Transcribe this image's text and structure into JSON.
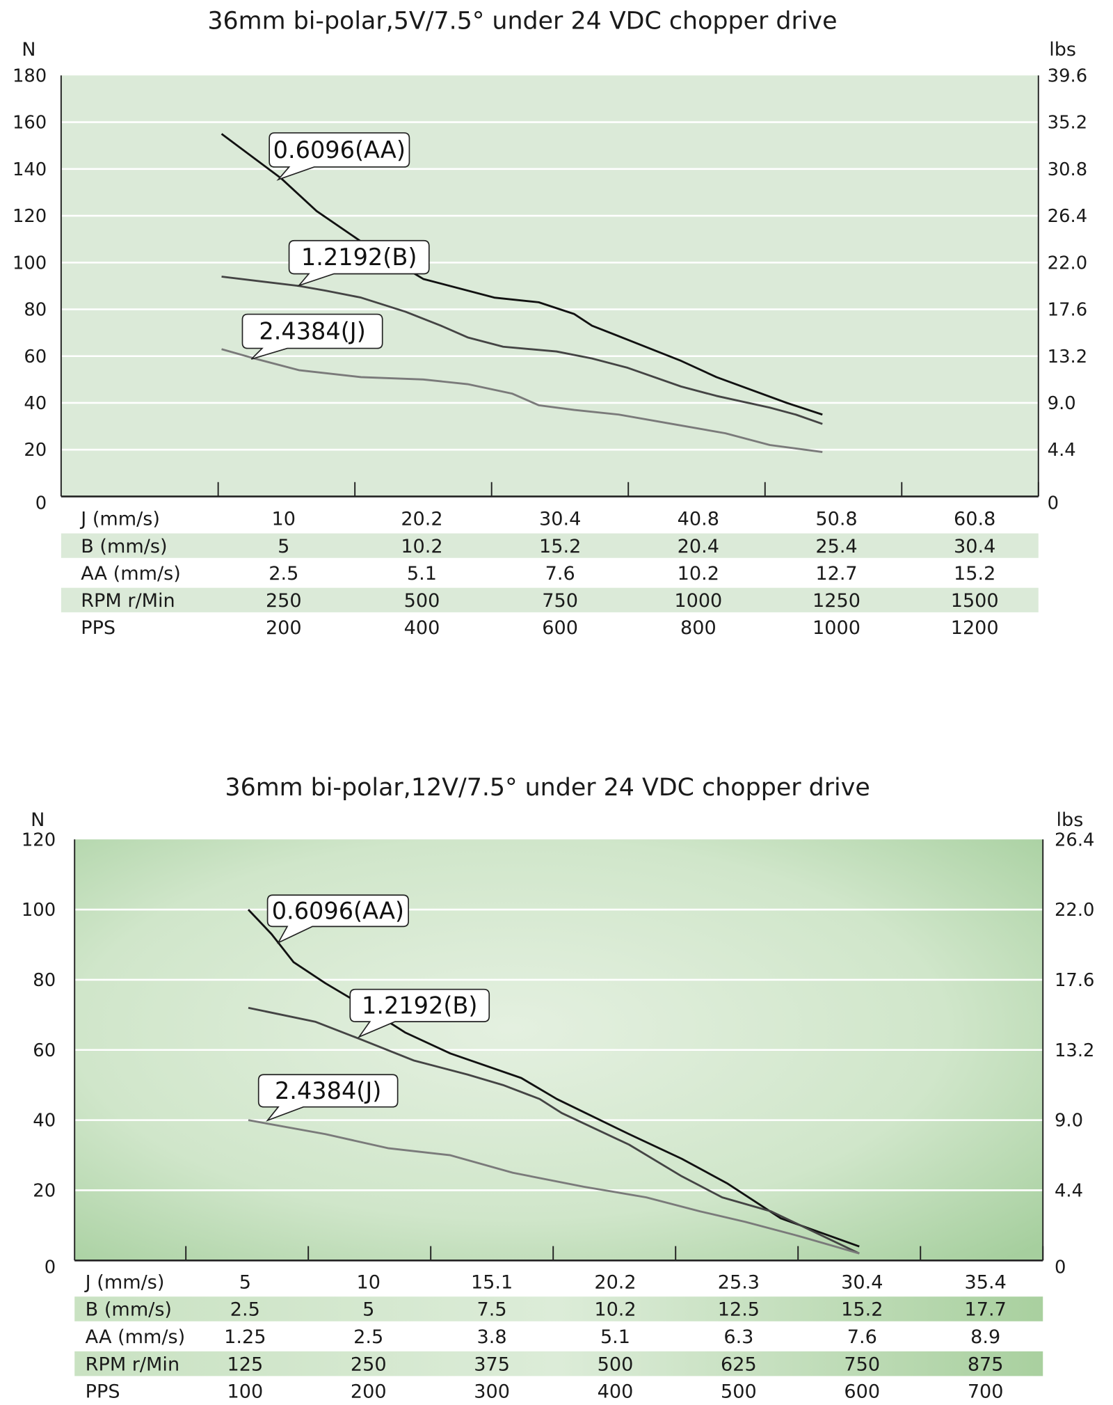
{
  "chart_data": [
    {
      "type": "line",
      "title": "36mm bi-polar,5V/7.5° under 24 VDC chopper drive",
      "y_left_label": "N",
      "y_right_label": "lbs",
      "ylim": [
        0,
        180
      ],
      "y_ticks_left": [
        "0",
        "20",
        "40",
        "60",
        "80",
        "100",
        "120",
        "140",
        "160",
        "180"
      ],
      "y_ticks_right": [
        "0",
        "4.4",
        "9.0",
        "13.2",
        "17.6",
        "22.0",
        "26.4",
        "30.8",
        "35.2",
        "39.6"
      ],
      "grid": true,
      "plot_color": "#dbead8",
      "x_unit": "PPS",
      "series": [
        {
          "name": "0.6096(AA)",
          "color": "#111111",
          "points": [
            [
              105,
              155
            ],
            [
              192,
              136
            ],
            [
              244,
              122
            ],
            [
              309,
              109
            ],
            [
              400,
              93
            ],
            [
              504,
              85
            ],
            [
              569,
              83
            ],
            [
              621,
              78
            ],
            [
              647,
              73
            ],
            [
              699,
              67
            ],
            [
              777,
              58
            ],
            [
              829,
              51
            ],
            [
              932,
              40
            ],
            [
              984,
              35
            ]
          ]
        },
        {
          "name": "1.2192(B)",
          "color": "#444444",
          "points": [
            [
              105,
              94
            ],
            [
              218,
              90
            ],
            [
              257,
              88
            ],
            [
              309,
              85
            ],
            [
              374,
              79
            ],
            [
              426,
              73
            ],
            [
              465,
              68
            ],
            [
              517,
              64
            ],
            [
              595,
              62
            ],
            [
              647,
              59
            ],
            [
              699,
              55
            ],
            [
              777,
              47
            ],
            [
              829,
              43
            ],
            [
              907,
              38
            ],
            [
              945,
              35
            ],
            [
              984,
              31
            ]
          ]
        },
        {
          "name": "2.4384(J)",
          "color": "#7a7a7a",
          "points": [
            [
              105,
              63
            ],
            [
              153,
              59
            ],
            [
              218,
              54
            ],
            [
              309,
              51
            ],
            [
              400,
              50
            ],
            [
              465,
              48
            ],
            [
              530,
              44
            ],
            [
              569,
              39
            ],
            [
              621,
              37
            ],
            [
              686,
              35
            ],
            [
              764,
              31
            ],
            [
              842,
              27
            ],
            [
              907,
              22
            ],
            [
              984,
              19
            ]
          ]
        }
      ],
      "table": {
        "rows": [
          {
            "label": "J (mm/s)",
            "values": [
              "10",
              "20.2",
              "30.4",
              "40.8",
              "50.8",
              "60.8"
            ]
          },
          {
            "label": "B (mm/s)",
            "values": [
              "5",
              "10.2",
              "15.2",
              "20.4",
              "25.4",
              "30.4"
            ]
          },
          {
            "label": "AA (mm/s)",
            "values": [
              "2.5",
              "5.1",
              "7.6",
              "10.2",
              "12.7",
              "15.2"
            ]
          },
          {
            "label": "RPM r/Min",
            "values": [
              "250",
              "500",
              "750",
              "1000",
              "1250",
              "1500"
            ]
          },
          {
            "label": "PPS",
            "values": [
              "200",
              "400",
              "600",
              "800",
              "1000",
              "1200"
            ]
          }
        ]
      }
    },
    {
      "type": "line",
      "title": "36mm bi-polar,12V/7.5° under 24 VDC chopper drive",
      "y_left_label": "N",
      "y_right_label": "lbs",
      "ylim": [
        0,
        120
      ],
      "y_ticks_left": [
        "0",
        "20",
        "40",
        "60",
        "80",
        "100",
        "120"
      ],
      "y_ticks_right": [
        "0",
        "4.4",
        "9.0",
        "13.2",
        "17.6",
        "22.0",
        "26.4"
      ],
      "grid": true,
      "plot_color": "#c4e0bd",
      "x_unit": "PPS",
      "series": [
        {
          "name": "0.6096(AA)",
          "color": "#111111",
          "points": [
            [
              101,
              100
            ],
            [
              120,
              93
            ],
            [
              138,
              85
            ],
            [
              164,
              79
            ],
            [
              193,
              73
            ],
            [
              229,
              65
            ],
            [
              266,
              59
            ],
            [
              324,
              52
            ],
            [
              353,
              46
            ],
            [
              412,
              36
            ],
            [
              455,
              29
            ],
            [
              492,
              22
            ],
            [
              536,
              12
            ],
            [
              600,
              4
            ]
          ]
        },
        {
          "name": "1.2192(B)",
          "color": "#444444",
          "points": [
            [
              101,
              72
            ],
            [
              156,
              68
            ],
            [
              193,
              63
            ],
            [
              236,
              57
            ],
            [
              280,
              53
            ],
            [
              309,
              50
            ],
            [
              339,
              46
            ],
            [
              357,
              42
            ],
            [
              412,
              33
            ],
            [
              455,
              24
            ],
            [
              488,
              18
            ],
            [
              528,
              14
            ],
            [
              600,
              2
            ]
          ]
        },
        {
          "name": "2.4384(J)",
          "color": "#7a7a7a",
          "points": [
            [
              101,
              40
            ],
            [
              164,
              36
            ],
            [
              215,
              32
            ],
            [
              266,
              30
            ],
            [
              317,
              25
            ],
            [
              375,
              21
            ],
            [
              426,
              18
            ],
            [
              470,
              14
            ],
            [
              507,
              11
            ],
            [
              550,
              7
            ],
            [
              600,
              2
            ]
          ]
        }
      ],
      "table": {
        "rows": [
          {
            "label": "J (mm/s)",
            "values": [
              "5",
              "10",
              "15.1",
              "20.2",
              "25.3",
              "30.4",
              "35.4"
            ]
          },
          {
            "label": "B (mm/s)",
            "values": [
              "2.5",
              "5",
              "7.5",
              "10.2",
              "12.5",
              "15.2",
              "17.7"
            ]
          },
          {
            "label": "AA (mm/s)",
            "values": [
              "1.25",
              "2.5",
              "3.8",
              "5.1",
              "6.3",
              "7.6",
              "8.9"
            ]
          },
          {
            "label": "RPM r/Min",
            "values": [
              "125",
              "250",
              "375",
              "500",
              "625",
              "750",
              "875"
            ]
          },
          {
            "label": "PPS",
            "values": [
              "100",
              "200",
              "300",
              "400",
              "500",
              "600",
              "700"
            ]
          }
        ]
      }
    }
  ]
}
